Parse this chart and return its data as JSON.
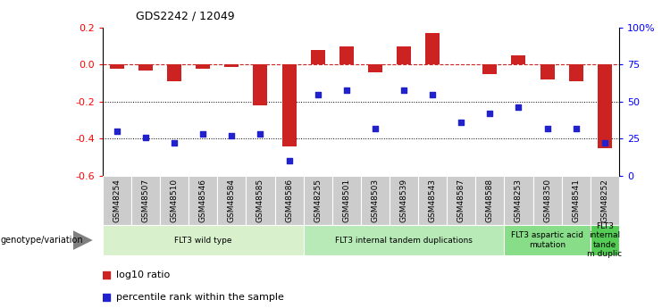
{
  "title": "GDS2242 / 12049",
  "samples": [
    "GSM48254",
    "GSM48507",
    "GSM48510",
    "GSM48546",
    "GSM48584",
    "GSM48585",
    "GSM48586",
    "GSM48255",
    "GSM48501",
    "GSM48503",
    "GSM48539",
    "GSM48543",
    "GSM48587",
    "GSM48588",
    "GSM48253",
    "GSM48350",
    "GSM48541",
    "GSM48252"
  ],
  "log10_ratio": [
    -0.02,
    -0.03,
    -0.09,
    -0.02,
    -0.01,
    -0.22,
    -0.44,
    0.08,
    0.1,
    -0.04,
    0.1,
    0.17,
    0.0,
    -0.05,
    0.05,
    -0.08,
    -0.09,
    -0.45
  ],
  "percentile_rank": [
    30,
    26,
    22,
    28,
    27,
    28,
    10,
    55,
    58,
    32,
    58,
    55,
    36,
    42,
    46,
    32,
    32,
    22
  ],
  "groups": [
    {
      "label": "FLT3 wild type",
      "start": 0,
      "end": 6,
      "color": "#d8f0cc"
    },
    {
      "label": "FLT3 internal tandem duplications",
      "start": 7,
      "end": 13,
      "color": "#b8eab8"
    },
    {
      "label": "FLT3 aspartic acid\nmutation",
      "start": 14,
      "end": 16,
      "color": "#88dd88"
    },
    {
      "label": "FLT3\ninternal\ntande\nm duplic",
      "start": 17,
      "end": 17,
      "color": "#55cc55"
    }
  ],
  "ylim_left": [
    -0.6,
    0.2
  ],
  "ylim_right": [
    0,
    100
  ],
  "yticks_left": [
    -0.6,
    -0.4,
    -0.2,
    0.0,
    0.2
  ],
  "yticks_right": [
    0,
    25,
    50,
    75,
    100
  ],
  "ytick_labels_right": [
    "0",
    "25",
    "50",
    "75",
    "100%"
  ],
  "bar_color": "#cc2222",
  "dot_color": "#2222cc",
  "dotted_lines": [
    -0.2,
    -0.4
  ],
  "legend_items": [
    {
      "label": "log10 ratio",
      "color": "#cc2222"
    },
    {
      "label": "percentile rank within the sample",
      "color": "#2222cc"
    }
  ]
}
